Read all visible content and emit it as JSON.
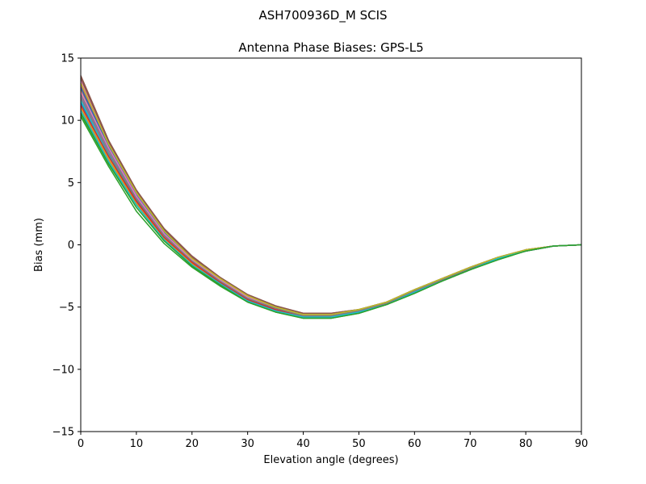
{
  "figure": {
    "suptitle": "ASH700936D_M    SCIS"
  },
  "chart_data": {
    "type": "line",
    "title": "Antenna Phase Biases: GPS-L5",
    "xlabel": "Elevation angle (degrees)",
    "ylabel": "Bias (mm)",
    "xlim": [
      0,
      90
    ],
    "ylim": [
      -15,
      15
    ],
    "xticks": [
      0,
      10,
      20,
      30,
      40,
      50,
      60,
      70,
      80,
      90
    ],
    "yticks": [
      -15,
      -10,
      -5,
      0,
      5,
      10,
      15
    ],
    "ytick_labels": [
      "−15",
      "−10",
      "−5",
      "0",
      "5",
      "10",
      "15"
    ],
    "grid": false,
    "x": [
      0,
      5,
      10,
      15,
      20,
      25,
      30,
      35,
      40,
      45,
      50,
      55,
      60,
      65,
      70,
      75,
      80,
      85,
      90
    ],
    "series": [
      {
        "color": "#1f77b4",
        "values": [
          11.4,
          7.3,
          3.6,
          0.7,
          -1.3,
          -2.9,
          -4.3,
          -5.1,
          -5.7,
          -5.7,
          -5.3,
          -4.7,
          -3.7,
          -2.8,
          -1.9,
          -1.1,
          -0.5,
          -0.1,
          0.0
        ]
      },
      {
        "color": "#ff7f0e",
        "values": [
          12.4,
          7.8,
          3.9,
          0.9,
          -1.2,
          -2.8,
          -4.2,
          -5.1,
          -5.6,
          -5.6,
          -5.3,
          -4.7,
          -3.7,
          -2.8,
          -1.9,
          -1.1,
          -0.5,
          -0.1,
          0.0
        ]
      },
      {
        "color": "#2ca02c",
        "values": [
          10.6,
          6.6,
          3.2,
          0.4,
          -1.6,
          -3.1,
          -4.5,
          -5.3,
          -5.8,
          -5.8,
          -5.4,
          -4.8,
          -3.8,
          -2.9,
          -2.0,
          -1.1,
          -0.5,
          -0.1,
          0.0
        ]
      },
      {
        "color": "#d62728",
        "values": [
          12.8,
          8.0,
          4.1,
          1.0,
          -1.1,
          -2.8,
          -4.2,
          -5.0,
          -5.6,
          -5.6,
          -5.2,
          -4.6,
          -3.7,
          -2.7,
          -1.9,
          -1.1,
          -0.4,
          -0.1,
          0.0
        ]
      },
      {
        "color": "#9467bd",
        "values": [
          11.9,
          7.6,
          3.8,
          0.8,
          -1.3,
          -2.9,
          -4.3,
          -5.1,
          -5.7,
          -5.7,
          -5.3,
          -4.7,
          -3.7,
          -2.8,
          -1.9,
          -1.1,
          -0.5,
          -0.1,
          0.0
        ]
      },
      {
        "color": "#8c564b",
        "values": [
          13.6,
          8.4,
          4.4,
          1.3,
          -0.9,
          -2.6,
          -4.0,
          -4.9,
          -5.5,
          -5.5,
          -5.2,
          -4.6,
          -3.6,
          -2.7,
          -1.8,
          -1.0,
          -0.4,
          -0.1,
          0.0
        ]
      },
      {
        "color": "#e377c2",
        "values": [
          13.2,
          8.2,
          4.2,
          1.1,
          -1.0,
          -2.7,
          -4.1,
          -5.0,
          -5.5,
          -5.6,
          -5.2,
          -4.6,
          -3.6,
          -2.7,
          -1.8,
          -1.0,
          -0.4,
          -0.1,
          0.0
        ]
      },
      {
        "color": "#7f7f7f",
        "values": [
          12.1,
          7.7,
          3.8,
          0.8,
          -1.3,
          -2.9,
          -4.3,
          -5.1,
          -5.7,
          -5.7,
          -5.3,
          -4.7,
          -3.7,
          -2.8,
          -1.9,
          -1.1,
          -0.5,
          -0.1,
          0.0
        ]
      },
      {
        "color": "#bcbd22",
        "values": [
          11.0,
          6.9,
          3.4,
          0.5,
          -1.5,
          -3.0,
          -4.4,
          -5.2,
          -5.8,
          -5.8,
          -5.4,
          -4.8,
          -3.8,
          -2.9,
          -2.0,
          -1.1,
          -0.5,
          -0.1,
          0.0
        ]
      },
      {
        "color": "#17becf",
        "values": [
          11.6,
          7.2,
          3.5,
          0.6,
          -1.4,
          -3.0,
          -4.4,
          -5.2,
          -5.7,
          -5.8,
          -5.4,
          -4.7,
          -3.8,
          -2.8,
          -1.9,
          -1.1,
          -0.5,
          -0.1,
          0.0
        ]
      },
      {
        "color": "#1f77b4",
        "values": [
          12.6,
          7.9,
          4.0,
          1.0,
          -1.2,
          -2.8,
          -4.2,
          -5.0,
          -5.6,
          -5.6,
          -5.3,
          -4.7,
          -3.7,
          -2.8,
          -1.9,
          -1.1,
          -0.5,
          -0.1,
          0.0
        ]
      },
      {
        "color": "#ff7f0e",
        "values": [
          10.9,
          6.8,
          3.3,
          0.5,
          -1.5,
          -3.1,
          -4.5,
          -5.3,
          -5.8,
          -5.8,
          -5.4,
          -4.8,
          -3.8,
          -2.9,
          -2.0,
          -1.1,
          -0.5,
          -0.1,
          0.0
        ]
      },
      {
        "color": "#2ca02c",
        "values": [
          10.3,
          6.3,
          2.7,
          0.1,
          -1.8,
          -3.3,
          -4.6,
          -5.4,
          -5.9,
          -5.9,
          -5.5,
          -4.8,
          -3.9,
          -2.9,
          -2.0,
          -1.2,
          -0.5,
          -0.1,
          0.0
        ]
      },
      {
        "color": "#d62728",
        "values": [
          11.2,
          7.1,
          3.5,
          0.6,
          -1.4,
          -3.0,
          -4.4,
          -5.2,
          -5.7,
          -5.7,
          -5.3,
          -4.7,
          -3.8,
          -2.8,
          -1.9,
          -1.1,
          -0.5,
          -0.1,
          0.0
        ]
      },
      {
        "color": "#9467bd",
        "values": [
          12.9,
          8.1,
          4.1,
          1.1,
          -1.1,
          -2.7,
          -4.1,
          -5.0,
          -5.6,
          -5.6,
          -5.2,
          -4.6,
          -3.6,
          -2.7,
          -1.8,
          -1.0,
          -0.4,
          -0.1,
          0.0
        ]
      },
      {
        "color": "#8c564b",
        "values": [
          13.4,
          8.3,
          4.3,
          1.2,
          -1.0,
          -2.6,
          -4.0,
          -4.9,
          -5.5,
          -5.5,
          -5.2,
          -4.6,
          -3.6,
          -2.7,
          -1.8,
          -1.0,
          -0.4,
          -0.1,
          0.0
        ]
      },
      {
        "color": "#e377c2",
        "values": [
          12.3,
          7.8,
          3.9,
          0.9,
          -1.2,
          -2.8,
          -4.2,
          -5.1,
          -5.6,
          -5.6,
          -5.3,
          -4.7,
          -3.7,
          -2.8,
          -1.9,
          -1.1,
          -0.5,
          -0.1,
          0.0
        ]
      },
      {
        "color": "#7f7f7f",
        "values": [
          11.8,
          7.4,
          3.7,
          0.7,
          -1.3,
          -2.9,
          -4.3,
          -5.1,
          -5.7,
          -5.7,
          -5.3,
          -4.7,
          -3.7,
          -2.8,
          -1.9,
          -1.1,
          -0.5,
          -0.1,
          0.0
        ]
      },
      {
        "color": "#bcbd22",
        "values": [
          13.0,
          8.1,
          4.2,
          1.1,
          -1.1,
          -2.7,
          -4.1,
          -5.0,
          -5.6,
          -5.6,
          -5.2,
          -4.6,
          -3.6,
          -2.7,
          -1.8,
          -1.0,
          -0.4,
          -0.1,
          0.0
        ]
      },
      {
        "color": "#17becf",
        "values": [
          10.8,
          6.7,
          3.2,
          0.4,
          -1.6,
          -3.1,
          -4.5,
          -5.3,
          -5.8,
          -5.8,
          -5.4,
          -4.8,
          -3.8,
          -2.9,
          -2.0,
          -1.1,
          -0.5,
          -0.1,
          0.0
        ]
      },
      {
        "color": "#2ca02c",
        "values": [
          10.5,
          6.5,
          3.0,
          0.3,
          -1.7,
          -3.2,
          -4.6,
          -5.4,
          -5.9,
          -5.9,
          -5.5,
          -4.8,
          -3.9,
          -2.9,
          -2.0,
          -1.2,
          -0.5,
          -0.1,
          0.0
        ]
      }
    ]
  }
}
